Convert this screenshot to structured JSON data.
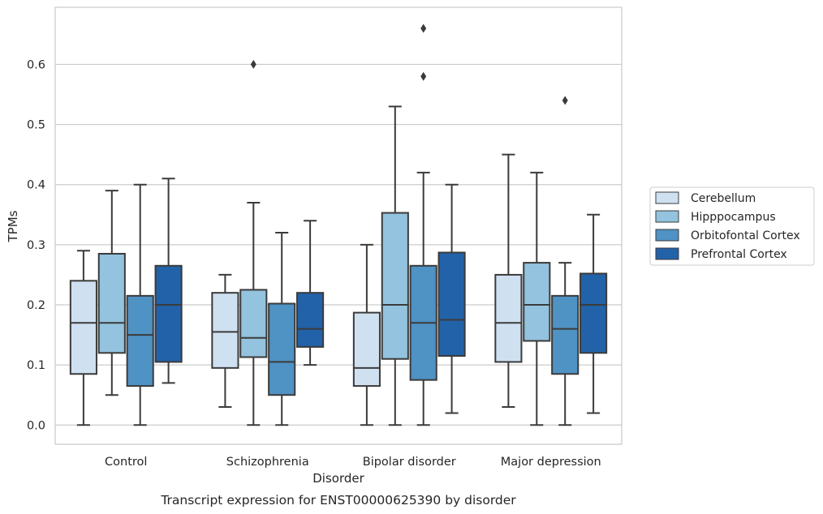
{
  "chart_data": {
    "type": "boxplot",
    "title": "",
    "xlabel": "Disorder",
    "ylabel": "TPMs",
    "caption": "Transcript expression for ENST00000625390 by disorder",
    "ylim": [
      -0.032,
      0.695
    ],
    "yticks": [
      "0.0",
      "0.1",
      "0.2",
      "0.3",
      "0.4",
      "0.5",
      "0.6"
    ],
    "grid": "horizontal",
    "legend_position": "right",
    "categories": [
      "Control",
      "Schizophrenia",
      "Bipolar disorder",
      "Major depression"
    ],
    "series": [
      {
        "name": "Cerebellum",
        "color": "#cfe0f1",
        "boxes": [
          {
            "whislo": 0.0,
            "q1": 0.085,
            "med": 0.17,
            "q3": 0.24,
            "whishi": 0.29,
            "fliers": []
          },
          {
            "whislo": 0.03,
            "q1": 0.095,
            "med": 0.155,
            "q3": 0.22,
            "whishi": 0.25,
            "fliers": []
          },
          {
            "whislo": 0.0,
            "q1": 0.065,
            "med": 0.095,
            "q3": 0.187,
            "whishi": 0.3,
            "fliers": []
          },
          {
            "whislo": 0.03,
            "q1": 0.105,
            "med": 0.17,
            "q3": 0.25,
            "whishi": 0.45,
            "fliers": []
          }
        ]
      },
      {
        "name": "Hipppocampus",
        "color": "#93c3de",
        "boxes": [
          {
            "whislo": 0.05,
            "q1": 0.12,
            "med": 0.17,
            "q3": 0.285,
            "whishi": 0.39,
            "fliers": []
          },
          {
            "whislo": 0.0,
            "q1": 0.113,
            "med": 0.145,
            "q3": 0.225,
            "whishi": 0.37,
            "fliers": [
              0.6
            ]
          },
          {
            "whislo": 0.0,
            "q1": 0.11,
            "med": 0.2,
            "q3": 0.353,
            "whishi": 0.53,
            "fliers": []
          },
          {
            "whislo": 0.0,
            "q1": 0.14,
            "med": 0.2,
            "q3": 0.27,
            "whishi": 0.42,
            "fliers": []
          }
        ]
      },
      {
        "name": "Orbitofontal Cortex",
        "color": "#4f92c4",
        "boxes": [
          {
            "whislo": 0.0,
            "q1": 0.065,
            "med": 0.15,
            "q3": 0.215,
            "whishi": 0.4,
            "fliers": []
          },
          {
            "whislo": 0.0,
            "q1": 0.05,
            "med": 0.105,
            "q3": 0.202,
            "whishi": 0.32,
            "fliers": []
          },
          {
            "whislo": 0.0,
            "q1": 0.075,
            "med": 0.17,
            "q3": 0.265,
            "whishi": 0.42,
            "fliers": [
              0.58,
              0.66
            ]
          },
          {
            "whislo": 0.0,
            "q1": 0.085,
            "med": 0.16,
            "q3": 0.215,
            "whishi": 0.27,
            "fliers": [
              0.54
            ]
          }
        ]
      },
      {
        "name": "Prefrontal Cortex",
        "color": "#2262a8",
        "boxes": [
          {
            "whislo": 0.07,
            "q1": 0.105,
            "med": 0.2,
            "q3": 0.265,
            "whishi": 0.41,
            "fliers": []
          },
          {
            "whislo": 0.1,
            "q1": 0.13,
            "med": 0.16,
            "q3": 0.22,
            "whishi": 0.34,
            "fliers": []
          },
          {
            "whislo": 0.02,
            "q1": 0.115,
            "med": 0.175,
            "q3": 0.287,
            "whishi": 0.4,
            "fliers": []
          },
          {
            "whislo": 0.02,
            "q1": 0.12,
            "med": 0.2,
            "q3": 0.252,
            "whishi": 0.35,
            "fliers": []
          }
        ]
      }
    ]
  }
}
